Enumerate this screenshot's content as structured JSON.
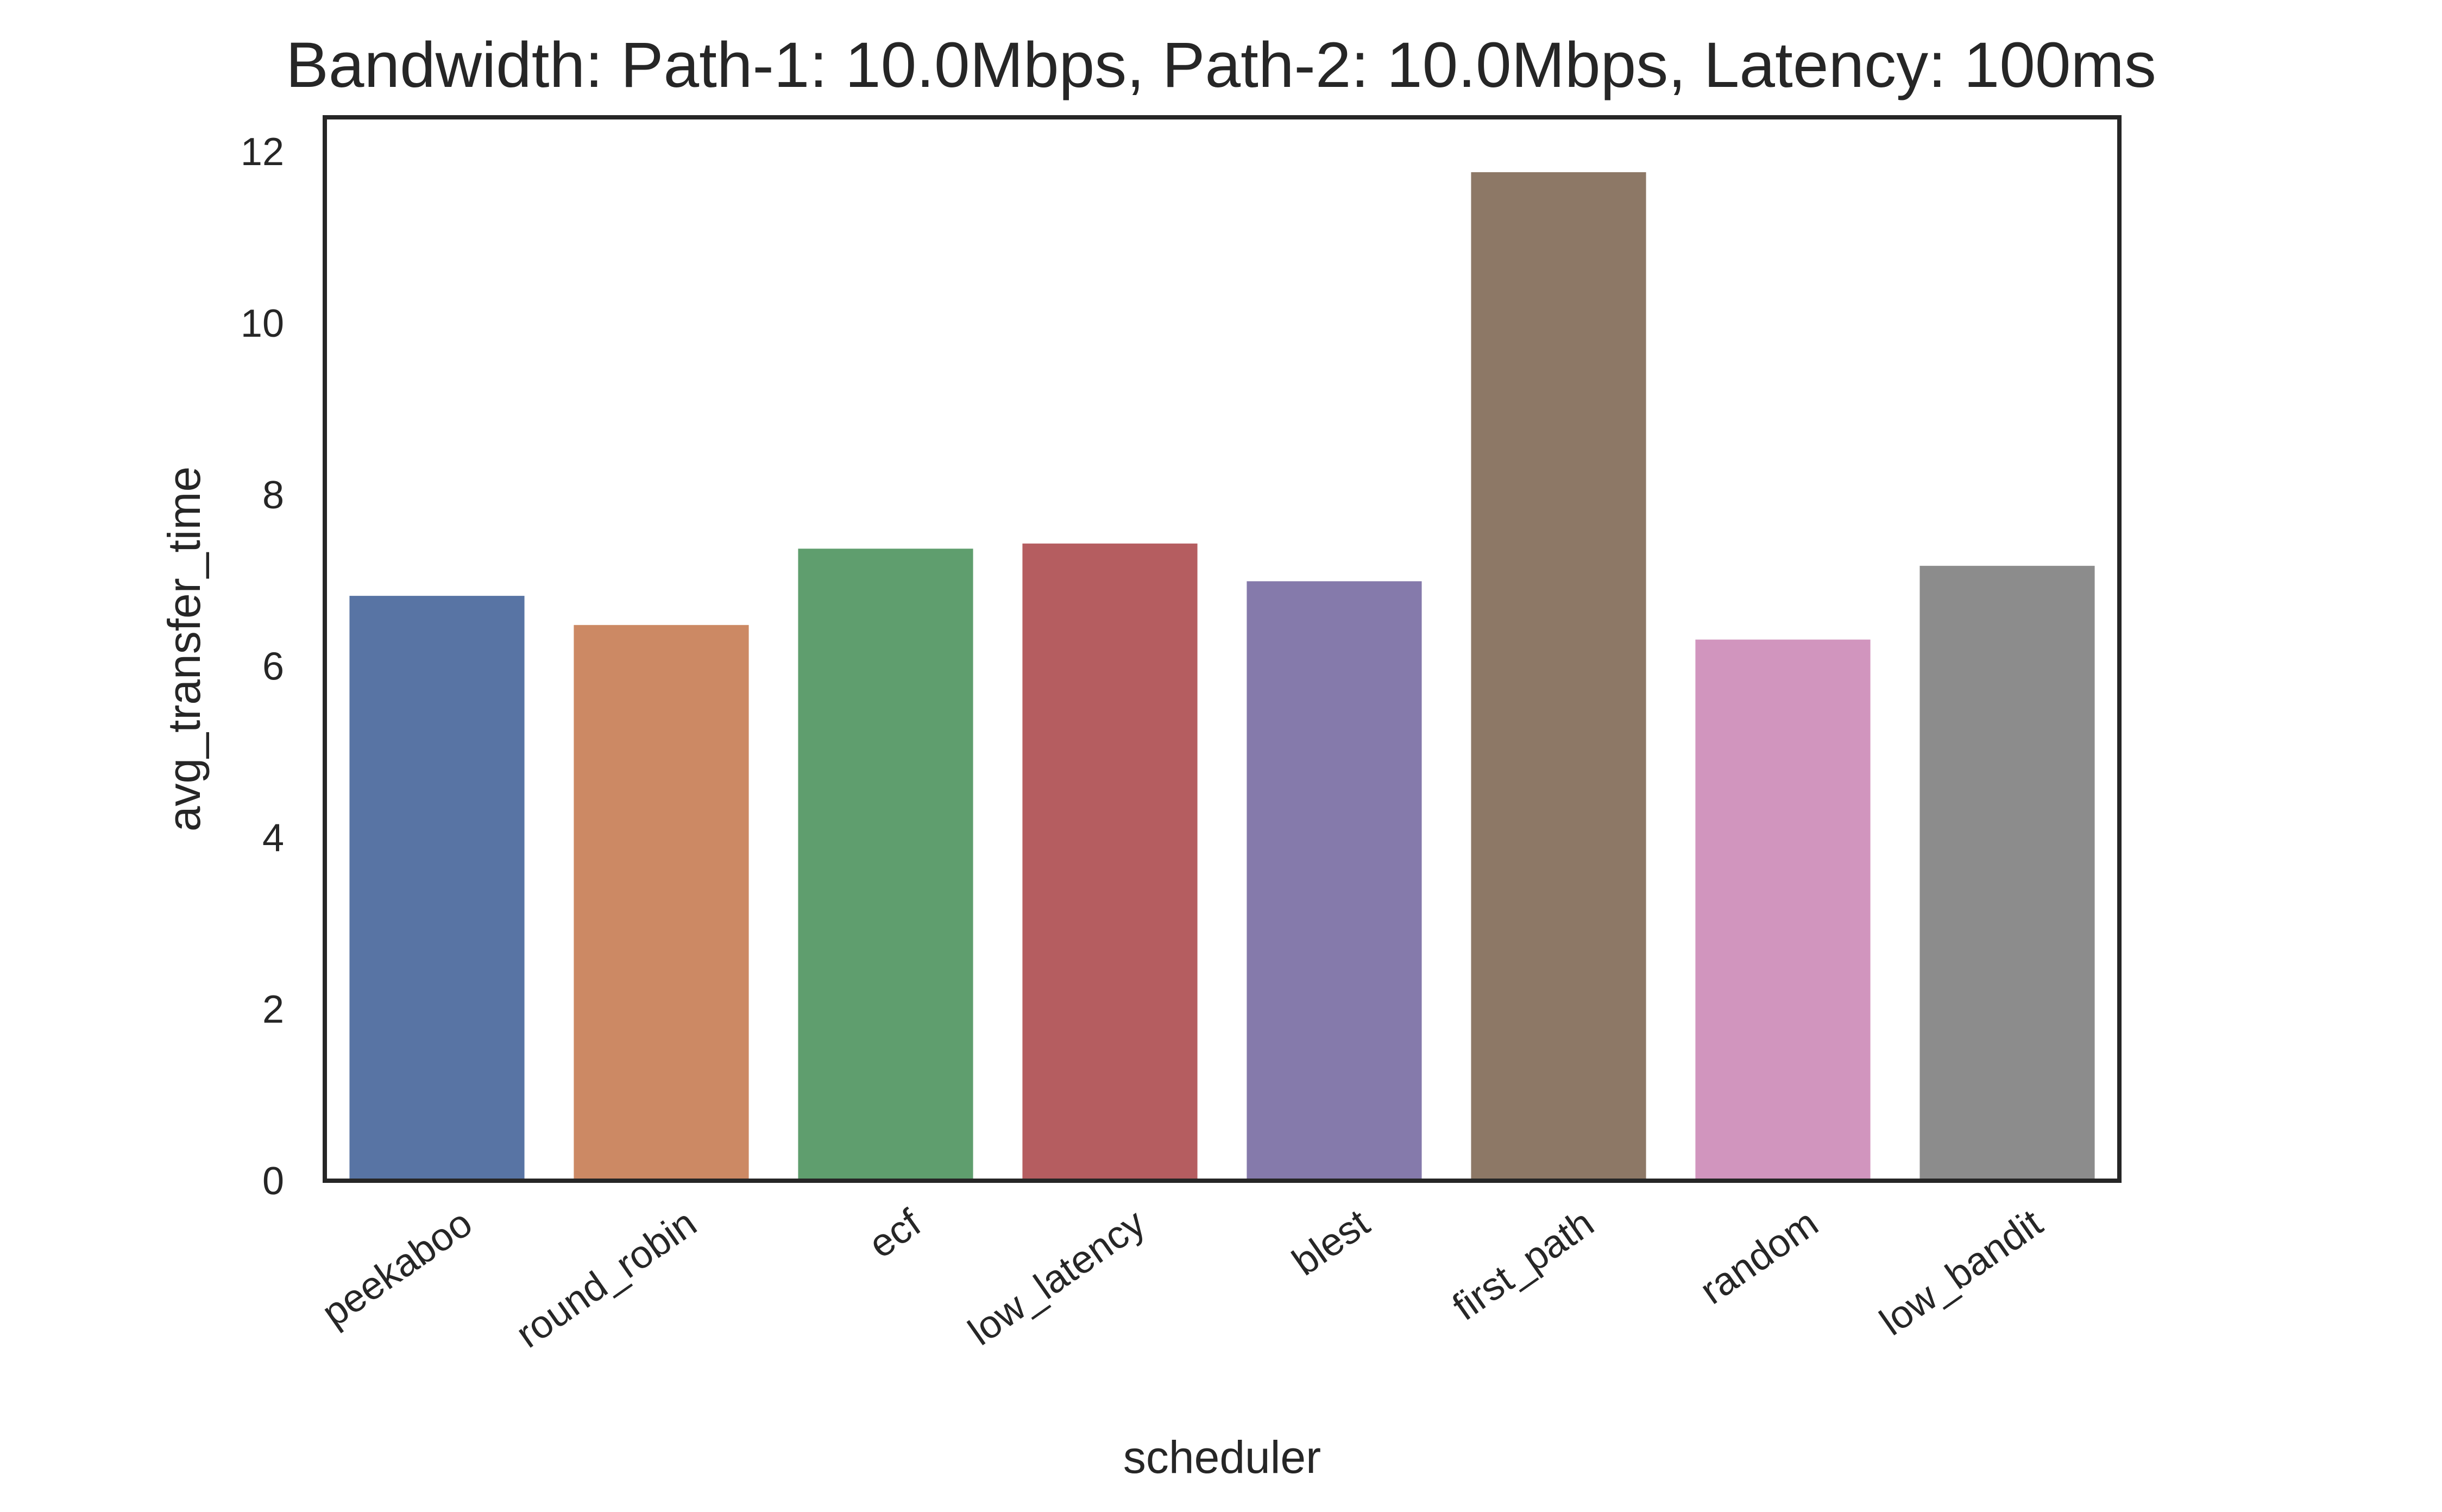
{
  "chart_data": {
    "type": "bar",
    "title": "Bandwidth: Path-1: 10.0Mbps, Path-2: 10.0Mbps, Latency: 100ms",
    "xlabel": "scheduler",
    "ylabel": "avg_transfer_time",
    "categories": [
      "peekaboo",
      "round_robin",
      "ecf",
      "low_latency",
      "blest",
      "first_path",
      "random",
      "low_bandit"
    ],
    "values": [
      6.82,
      6.48,
      7.37,
      7.43,
      6.99,
      11.76,
      6.31,
      7.17
    ],
    "colors": [
      "#5874a4",
      "#cc8964",
      "#5f9e6e",
      "#b55d60",
      "#857aab",
      "#8d7866",
      "#d195be",
      "#8c8c8c"
    ],
    "ylim": [
      0,
      12.4
    ],
    "yticks": [
      "0",
      "2",
      "4",
      "6",
      "8",
      "10",
      "12"
    ],
    "grid": false,
    "legend": "none"
  }
}
